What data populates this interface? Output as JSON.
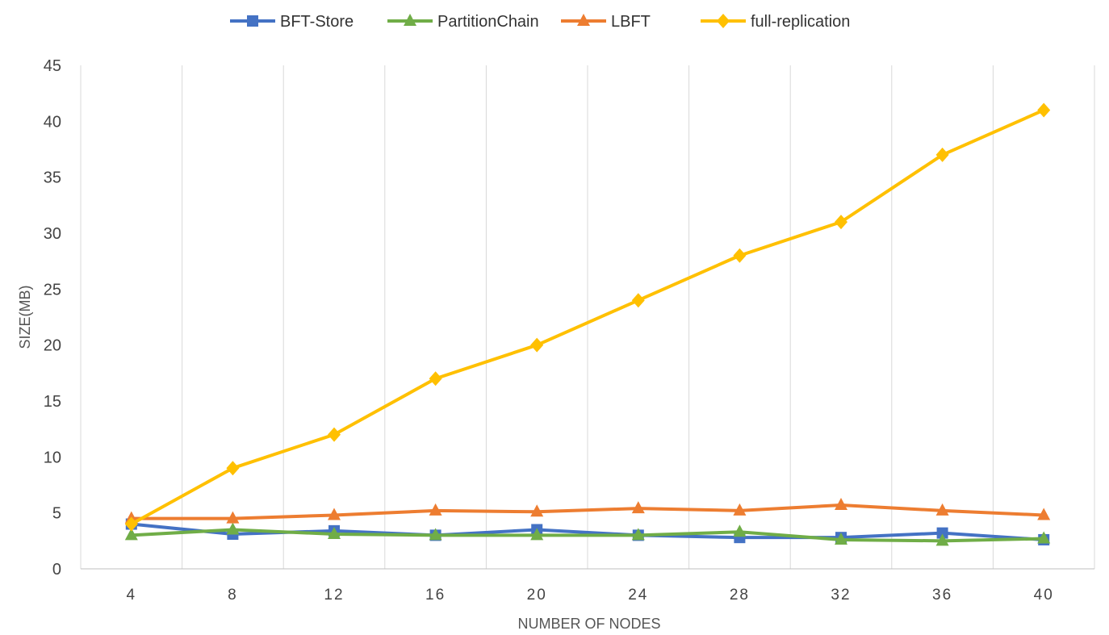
{
  "chart_data": {
    "type": "line",
    "title": "",
    "xlabel": "NUMBER OF NODES",
    "ylabel": "SIZE(MB)",
    "categories": [
      "4",
      "8",
      "12",
      "16",
      "20",
      "24",
      "28",
      "32",
      "36",
      "40"
    ],
    "ylim": [
      0,
      45
    ],
    "yticks": [
      "0",
      "5",
      "10",
      "15",
      "20",
      "25",
      "30",
      "35",
      "40",
      "45"
    ],
    "grid": "vertical",
    "legend_position": "top",
    "series": [
      {
        "name": "BFT-Store",
        "color": "#4472C4",
        "marker": "square",
        "values": [
          4.0,
          3.1,
          3.4,
          3.0,
          3.5,
          3.0,
          2.8,
          2.8,
          3.2,
          2.6
        ]
      },
      {
        "name": "PartitionChain",
        "color": "#70AD47",
        "marker": "triangle",
        "values": [
          3.0,
          3.5,
          3.1,
          3.0,
          3.0,
          3.0,
          3.3,
          2.6,
          2.5,
          2.7
        ]
      },
      {
        "name": "LBFT",
        "color": "#ED7D31",
        "marker": "triangle",
        "values": [
          4.5,
          4.5,
          4.8,
          5.2,
          5.1,
          5.4,
          5.2,
          5.7,
          5.2,
          4.8
        ]
      },
      {
        "name": "full-replication",
        "color": "#FFC000",
        "marker": "diamond",
        "values": [
          4.0,
          9.0,
          12.0,
          17.0,
          20.0,
          24.0,
          28.0,
          31.0,
          37.0,
          41.0
        ]
      }
    ]
  }
}
